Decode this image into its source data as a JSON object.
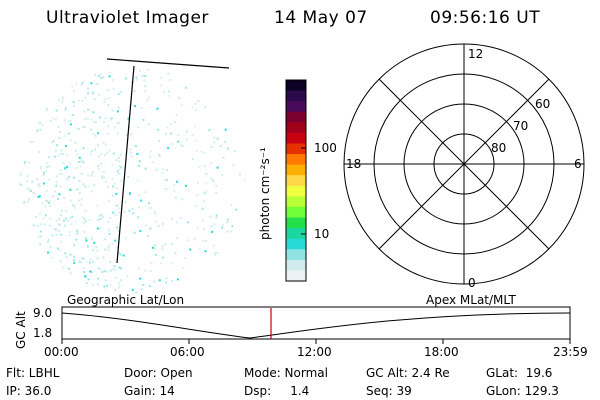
{
  "header": {
    "instrument": "Ultraviolet Imager",
    "date": "14 May 07",
    "time": "09:56:16 UT"
  },
  "colorbar": {
    "unit_label": "photon cm⁻²s⁻¹",
    "tick_labels": [
      "100",
      "10"
    ],
    "colors": [
      "#0d0224",
      "#2a0a4a",
      "#4a0a5a",
      "#7a0030",
      "#a0001a",
      "#c80012",
      "#e63000",
      "#ff7a00",
      "#ffb000",
      "#ffd84a",
      "#f0ff40",
      "#b8ff3a",
      "#6eff3a",
      "#23e04a",
      "#1ad7a0",
      "#27d9d9",
      "#8fe3e3",
      "#d0ecec",
      "#eaf2f2"
    ]
  },
  "polar": {
    "mlt_labels": {
      "top": "12",
      "left": "18",
      "right": "6",
      "bottom": "0"
    },
    "lat_labels": [
      "60",
      "70",
      "80"
    ]
  },
  "timeline": {
    "left_label": "Geographic Lat/Lon",
    "right_label": "Apex  MLat/MLT",
    "axis_title": "GC Alt",
    "y_ticks": [
      "9.0",
      "1.8"
    ],
    "x_ticks": [
      "00:00",
      "06:00",
      "12:00",
      "18:00",
      "23:59"
    ],
    "marker_color": "#c00000"
  },
  "info": {
    "row1": [
      "Flt: LBHL",
      "Door: Open",
      "Mode: Normal",
      "GC Alt: 2.4 Re",
      "GLat:  19.6"
    ],
    "row2": [
      "IP: 36.0",
      "Gain: 14",
      "Dsp:     1.4",
      "Seq: 39",
      "GLon: 129.3"
    ]
  }
}
